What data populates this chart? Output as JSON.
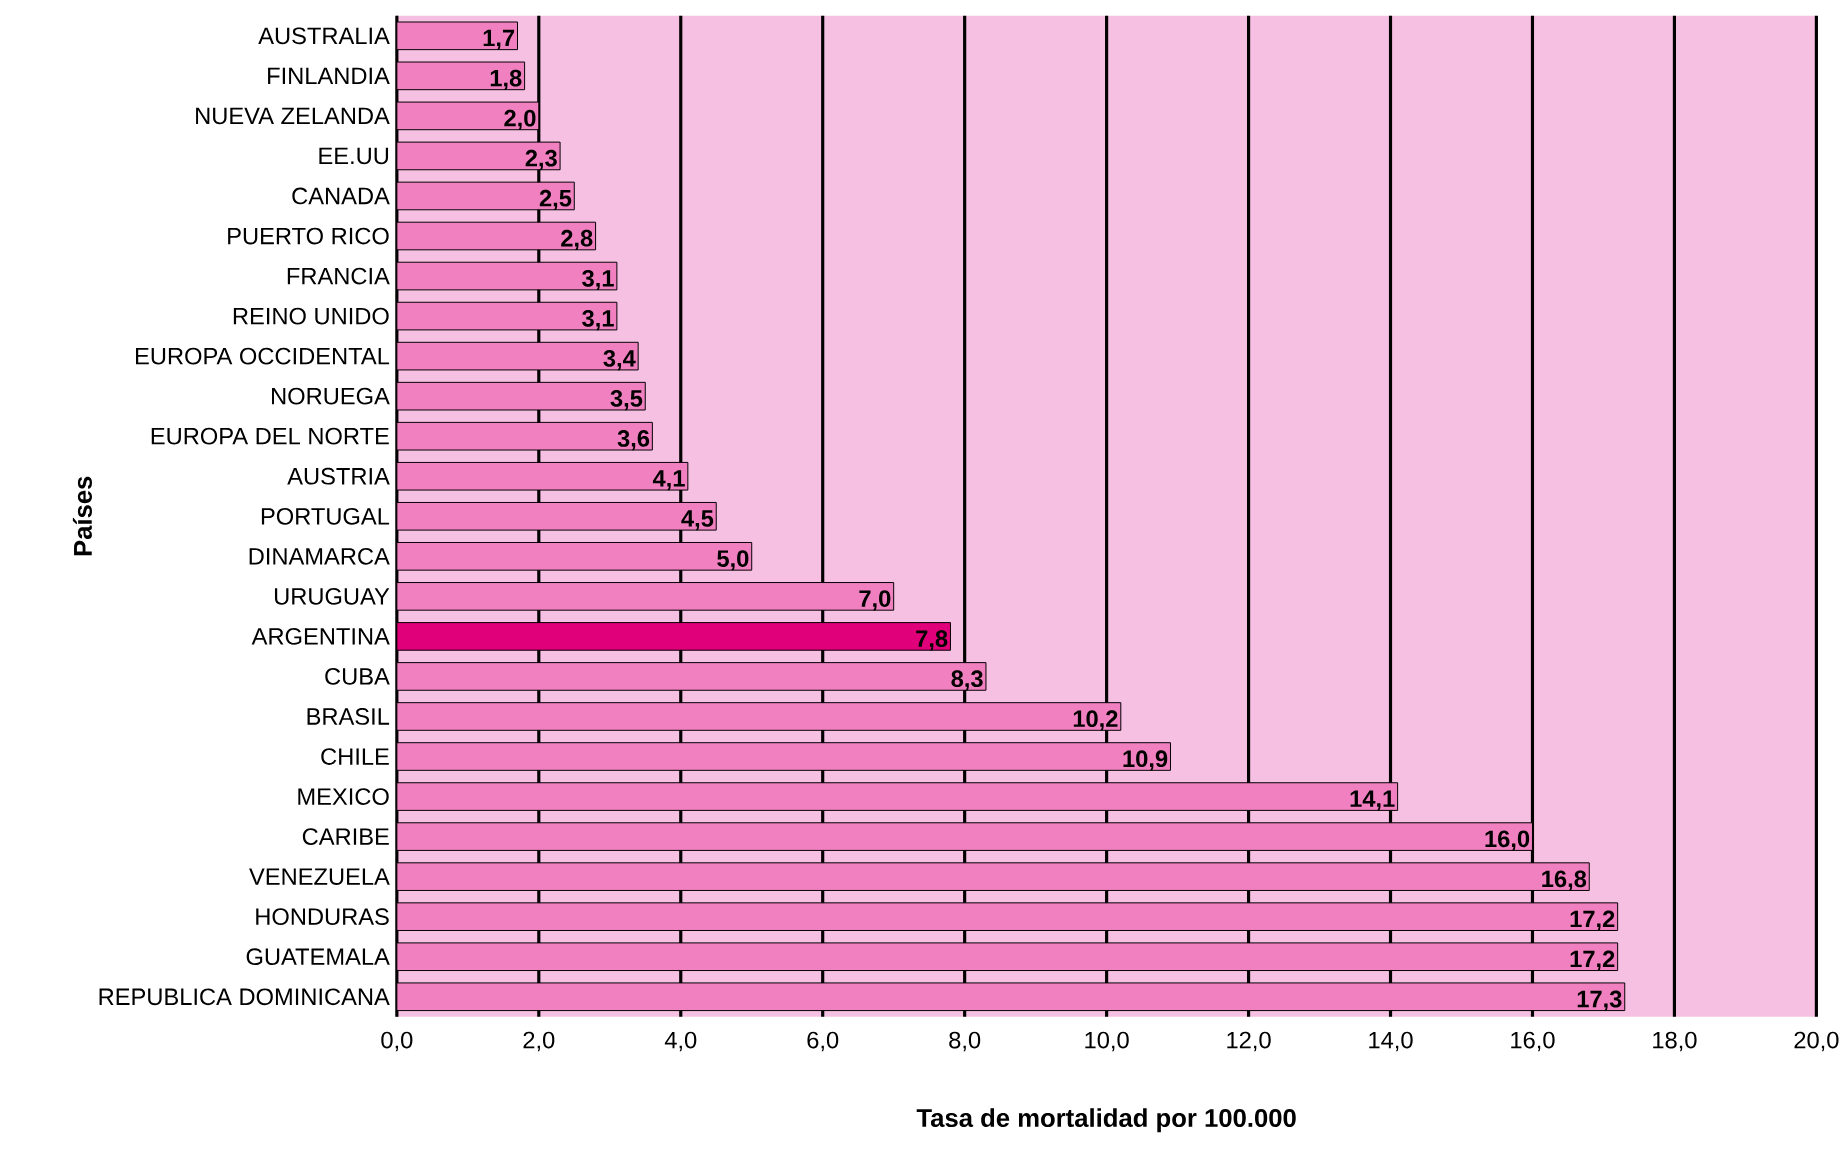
{
  "chart_data": {
    "type": "bar",
    "orientation": "horizontal",
    "xlabel": "Tasa de mortalidad por 100.000",
    "ylabel": "Países",
    "categories": [
      "AUSTRALIA",
      "FINLANDIA",
      "NUEVA ZELANDA",
      "EE.UU",
      "CANADA",
      "PUERTO RICO",
      "FRANCIA",
      "REINO UNIDO",
      "EUROPA OCCIDENTAL",
      "NORUEGA",
      "EUROPA DEL NORTE",
      "AUSTRIA",
      "PORTUGAL",
      "DINAMARCA",
      "URUGUAY",
      "ARGENTINA",
      "CUBA",
      "BRASIL",
      "CHILE",
      "MEXICO",
      "CARIBE",
      "VENEZUELA",
      "HONDURAS",
      "GUATEMALA",
      "REPUBLICA DOMINICANA"
    ],
    "values": [
      1.7,
      1.8,
      2.0,
      2.3,
      2.5,
      2.8,
      3.1,
      3.1,
      3.4,
      3.5,
      3.6,
      4.1,
      4.5,
      5.0,
      7.0,
      7.8,
      8.3,
      10.2,
      10.9,
      14.1,
      16.0,
      16.8,
      17.2,
      17.2,
      17.3
    ],
    "value_labels": [
      "1,7",
      "1,8",
      "2,0",
      "2,3",
      "2,5",
      "2,8",
      "3,1",
      "3,1",
      "3,4",
      "3,5",
      "3,6",
      "4,1",
      "4,5",
      "5,0",
      "7,0",
      "7,8",
      "8,3",
      "10,2",
      "10,9",
      "14,1",
      "16,0",
      "16,8",
      "17,2",
      "17,2",
      "17,3"
    ],
    "colors": [
      "#f080c0",
      "#f080c0",
      "#f080c0",
      "#f080c0",
      "#f080c0",
      "#f080c0",
      "#f080c0",
      "#f080c0",
      "#f080c0",
      "#f080c0",
      "#f080c0",
      "#f080c0",
      "#f080c0",
      "#f080c0",
      "#f080c0",
      "#e0007a",
      "#f080c0",
      "#f080c0",
      "#f080c0",
      "#f080c0",
      "#f080c0",
      "#f080c0",
      "#f080c0",
      "#f080c0",
      "#f080c0"
    ],
    "xlim": [
      0,
      20
    ],
    "xticks": [
      {
        "value": 0,
        "label": "0,0"
      },
      {
        "value": 2,
        "label": "2,0"
      },
      {
        "value": 4,
        "label": "4,0"
      },
      {
        "value": 6,
        "label": "6,0"
      },
      {
        "value": 8,
        "label": "8,0"
      },
      {
        "value": 10,
        "label": "10,0"
      },
      {
        "value": 12,
        "label": "12,0"
      },
      {
        "value": 14,
        "label": "14,0"
      },
      {
        "value": 16,
        "label": "16,0"
      },
      {
        "value": 18,
        "label": "18,0"
      },
      {
        "value": 20,
        "label": "20,0"
      }
    ],
    "grid": "x"
  }
}
